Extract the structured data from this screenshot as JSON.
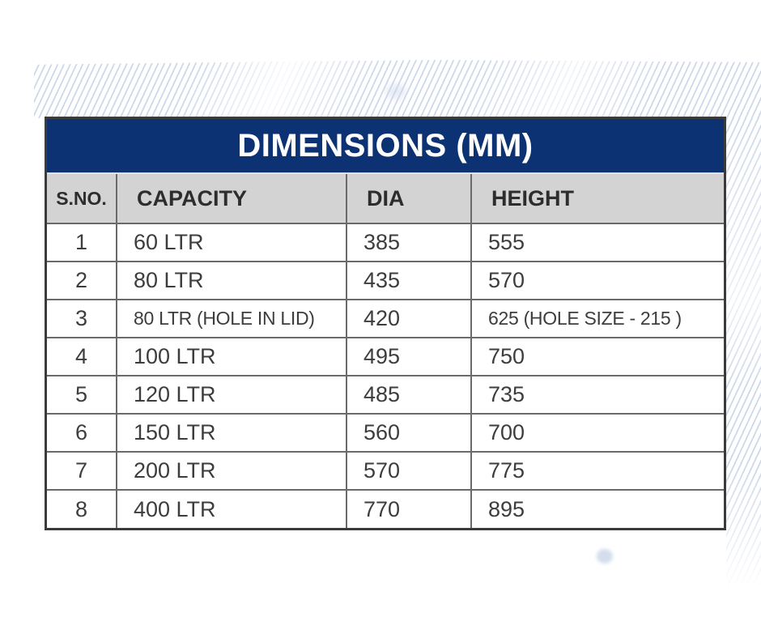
{
  "page": {
    "background_color": "#ffffff",
    "decor": {
      "hatch_color": "#a6b8d8",
      "dot_color": "#cdd7ea"
    }
  },
  "table": {
    "title": "DIMENSIONS (MM)",
    "title_bg_color": "#0d3274",
    "title_text_color": "#ffffff",
    "header_bg_color": "#d3d3d3",
    "border_color": "#6a6a6a",
    "columns": [
      {
        "key": "sno",
        "label": "S.NO."
      },
      {
        "key": "capacity",
        "label": "CAPACITY"
      },
      {
        "key": "dia",
        "label": "DIA"
      },
      {
        "key": "height",
        "label": "HEIGHT"
      }
    ],
    "rows": [
      {
        "sno": "1",
        "capacity": "60 LTR",
        "dia": "385",
        "height": "555"
      },
      {
        "sno": "2",
        "capacity": "80 LTR",
        "dia": "435",
        "height": "570"
      },
      {
        "sno": "3",
        "capacity": "80 LTR (HOLE IN LID)",
        "dia": "420",
        "height": "625 (HOLE SIZE - 215 )"
      },
      {
        "sno": "4",
        "capacity": "100 LTR",
        "dia": "495",
        "height": "750"
      },
      {
        "sno": "5",
        "capacity": "120 LTR",
        "dia": "485",
        "height": "735"
      },
      {
        "sno": "6",
        "capacity": "150 LTR",
        "dia": "560",
        "height": "700"
      },
      {
        "sno": "7",
        "capacity": "200 LTR",
        "dia": "570",
        "height": "775"
      },
      {
        "sno": "8",
        "capacity": "400 LTR",
        "dia": "770",
        "height": "895"
      }
    ]
  }
}
